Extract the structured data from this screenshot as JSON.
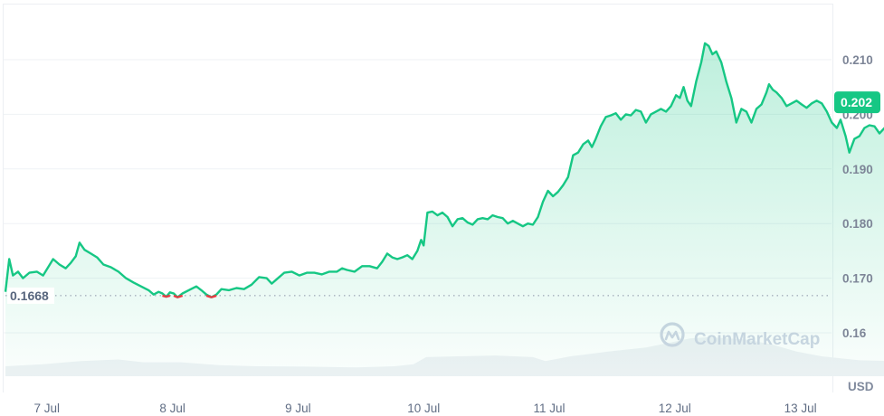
{
  "chart_data": {
    "type": "area",
    "title": "",
    "xlabel": "",
    "ylabel": "USD",
    "currency_unit": "USD",
    "ylim": [
      0.1545,
      0.2185
    ],
    "y_ticks": [
      {
        "label": "0.210",
        "value": 0.21
      },
      {
        "label": "0.200",
        "value": 0.2
      },
      {
        "label": "0.190",
        "value": 0.19
      },
      {
        "label": "0.180",
        "value": 0.18
      },
      {
        "label": "0.170",
        "value": 0.17
      },
      {
        "label": "0.16",
        "value": 0.16
      }
    ],
    "x_ticks": [
      {
        "label": "7 Jul",
        "x": 0.33
      },
      {
        "label": "8 Jul",
        "x": 1.33
      },
      {
        "label": "9 Jul",
        "x": 2.33
      },
      {
        "label": "10 Jul",
        "x": 3.33
      },
      {
        "label": "11 Jul",
        "x": 4.33
      },
      {
        "label": "12 Jul",
        "x": 5.33
      },
      {
        "label": "13 Jul",
        "x": 6.33
      }
    ],
    "x_range_days": [
      0,
      7.05
    ],
    "grid": true,
    "legend": "none",
    "current_price": {
      "label": "0.202",
      "value": 0.2022
    },
    "baseline": {
      "label": "0.1668",
      "value": 0.1668
    },
    "series": [
      {
        "name": "Price",
        "color_up": "#16c784",
        "color_down": "#ea3943",
        "points": [
          [
            0.0,
            0.1675
          ],
          [
            0.03,
            0.1735
          ],
          [
            0.06,
            0.1705
          ],
          [
            0.1,
            0.1712
          ],
          [
            0.14,
            0.17
          ],
          [
            0.19,
            0.171
          ],
          [
            0.25,
            0.1712
          ],
          [
            0.3,
            0.1705
          ],
          [
            0.34,
            0.172
          ],
          [
            0.38,
            0.1735
          ],
          [
            0.43,
            0.1725
          ],
          [
            0.48,
            0.1718
          ],
          [
            0.52,
            0.1728
          ],
          [
            0.56,
            0.174
          ],
          [
            0.59,
            0.1765
          ],
          [
            0.63,
            0.1752
          ],
          [
            0.68,
            0.1745
          ],
          [
            0.73,
            0.1738
          ],
          [
            0.78,
            0.1725
          ],
          [
            0.84,
            0.172
          ],
          [
            0.9,
            0.1712
          ],
          [
            0.96,
            0.17
          ],
          [
            1.02,
            0.1692
          ],
          [
            1.08,
            0.1685
          ],
          [
            1.14,
            0.1678
          ],
          [
            1.18,
            0.167
          ],
          [
            1.22,
            0.1675
          ],
          [
            1.25,
            0.1672
          ],
          [
            1.28,
            0.1666
          ],
          [
            1.31,
            0.1674
          ],
          [
            1.34,
            0.1672
          ],
          [
            1.37,
            0.1665
          ],
          [
            1.41,
            0.1672
          ],
          [
            1.46,
            0.1678
          ],
          [
            1.52,
            0.1685
          ],
          [
            1.56,
            0.1678
          ],
          [
            1.6,
            0.167
          ],
          [
            1.64,
            0.1665
          ],
          [
            1.68,
            0.167
          ],
          [
            1.72,
            0.168
          ],
          [
            1.78,
            0.1678
          ],
          [
            1.84,
            0.1682
          ],
          [
            1.9,
            0.168
          ],
          [
            1.96,
            0.1688
          ],
          [
            2.02,
            0.1702
          ],
          [
            2.08,
            0.17
          ],
          [
            2.12,
            0.169
          ],
          [
            2.16,
            0.1698
          ],
          [
            2.22,
            0.171
          ],
          [
            2.28,
            0.1712
          ],
          [
            2.34,
            0.1705
          ],
          [
            2.4,
            0.171
          ],
          [
            2.46,
            0.171
          ],
          [
            2.52,
            0.1707
          ],
          [
            2.58,
            0.1712
          ],
          [
            2.64,
            0.1712
          ],
          [
            2.68,
            0.1718
          ],
          [
            2.72,
            0.1715
          ],
          [
            2.78,
            0.1712
          ],
          [
            2.84,
            0.1722
          ],
          [
            2.9,
            0.1722
          ],
          [
            2.96,
            0.1718
          ],
          [
            3.0,
            0.173
          ],
          [
            3.04,
            0.1745
          ],
          [
            3.08,
            0.1738
          ],
          [
            3.12,
            0.1735
          ],
          [
            3.16,
            0.1738
          ],
          [
            3.2,
            0.1742
          ],
          [
            3.24,
            0.1735
          ],
          [
            3.28,
            0.175
          ],
          [
            3.31,
            0.177
          ],
          [
            3.33,
            0.176
          ],
          [
            3.36,
            0.182
          ],
          [
            3.4,
            0.1822
          ],
          [
            3.44,
            0.1815
          ],
          [
            3.48,
            0.182
          ],
          [
            3.52,
            0.1812
          ],
          [
            3.56,
            0.1795
          ],
          [
            3.6,
            0.1808
          ],
          [
            3.64,
            0.181
          ],
          [
            3.68,
            0.1802
          ],
          [
            3.72,
            0.1798
          ],
          [
            3.76,
            0.1808
          ],
          [
            3.8,
            0.181
          ],
          [
            3.84,
            0.1808
          ],
          [
            3.88,
            0.1815
          ],
          [
            3.92,
            0.1812
          ],
          [
            3.96,
            0.181
          ],
          [
            4.0,
            0.18
          ],
          [
            4.04,
            0.1805
          ],
          [
            4.08,
            0.18
          ],
          [
            4.12,
            0.1795
          ],
          [
            4.16,
            0.18
          ],
          [
            4.2,
            0.1798
          ],
          [
            4.24,
            0.1812
          ],
          [
            4.28,
            0.184
          ],
          [
            4.32,
            0.186
          ],
          [
            4.36,
            0.185
          ],
          [
            4.4,
            0.1858
          ],
          [
            4.44,
            0.187
          ],
          [
            4.48,
            0.1885
          ],
          [
            4.52,
            0.1925
          ],
          [
            4.56,
            0.193
          ],
          [
            4.6,
            0.1945
          ],
          [
            4.64,
            0.1952
          ],
          [
            4.67,
            0.194
          ],
          [
            4.7,
            0.1955
          ],
          [
            4.74,
            0.1978
          ],
          [
            4.78,
            0.1995
          ],
          [
            4.82,
            0.1998
          ],
          [
            4.86,
            0.2002
          ],
          [
            4.9,
            0.199
          ],
          [
            4.94,
            0.2
          ],
          [
            4.98,
            0.1998
          ],
          [
            5.02,
            0.2008
          ],
          [
            5.06,
            0.2005
          ],
          [
            5.1,
            0.1985
          ],
          [
            5.14,
            0.2
          ],
          [
            5.18,
            0.2005
          ],
          [
            5.22,
            0.201
          ],
          [
            5.26,
            0.2005
          ],
          [
            5.3,
            0.2015
          ],
          [
            5.34,
            0.2035
          ],
          [
            5.37,
            0.203
          ],
          [
            5.4,
            0.205
          ],
          [
            5.43,
            0.2025
          ],
          [
            5.46,
            0.2015
          ],
          [
            5.5,
            0.206
          ],
          [
            5.54,
            0.2095
          ],
          [
            5.57,
            0.213
          ],
          [
            5.6,
            0.2125
          ],
          [
            5.63,
            0.211
          ],
          [
            5.66,
            0.2115
          ],
          [
            5.7,
            0.2095
          ],
          [
            5.74,
            0.206
          ],
          [
            5.78,
            0.203
          ],
          [
            5.82,
            0.1985
          ],
          [
            5.86,
            0.201
          ],
          [
            5.9,
            0.2005
          ],
          [
            5.94,
            0.1985
          ],
          [
            5.98,
            0.201
          ],
          [
            6.02,
            0.2018
          ],
          [
            6.06,
            0.204
          ],
          [
            6.08,
            0.2055
          ],
          [
            6.11,
            0.2045
          ],
          [
            6.14,
            0.204
          ],
          [
            6.18,
            0.203
          ],
          [
            6.22,
            0.2015
          ],
          [
            6.26,
            0.202
          ],
          [
            6.3,
            0.2025
          ],
          [
            6.34,
            0.2018
          ],
          [
            6.38,
            0.2012
          ],
          [
            6.42,
            0.202
          ],
          [
            6.46,
            0.2025
          ],
          [
            6.5,
            0.202
          ],
          [
            6.54,
            0.2005
          ],
          [
            6.58,
            0.1985
          ],
          [
            6.62,
            0.1975
          ],
          [
            6.65,
            0.199
          ],
          [
            6.69,
            0.196
          ],
          [
            6.72,
            0.193
          ],
          [
            6.76,
            0.1955
          ],
          [
            6.8,
            0.196
          ],
          [
            6.84,
            0.1975
          ],
          [
            6.88,
            0.198
          ],
          [
            6.92,
            0.1978
          ],
          [
            6.96,
            0.1965
          ],
          [
            7.0,
            0.1975
          ],
          [
            7.04,
            0.1982
          ],
          [
            7.08,
            0.1985
          ],
          [
            7.12,
            0.1988
          ],
          [
            7.16,
            0.199
          ],
          [
            7.2,
            0.1993
          ],
          [
            7.24,
            0.1988
          ],
          [
            7.28,
            0.1998
          ],
          [
            7.32,
            0.1995
          ],
          [
            7.36,
            0.1985
          ],
          [
            7.4,
            0.1978
          ],
          [
            7.44,
            0.1988
          ],
          [
            7.48,
            0.1995
          ],
          [
            7.52,
            0.2005
          ],
          [
            7.55,
            0.2012
          ],
          [
            7.58,
            0.2022
          ]
        ]
      },
      {
        "name": "Volume",
        "color": "#eff2f5",
        "relative_heights": [
          [
            0.0,
            0.25
          ],
          [
            0.3,
            0.3
          ],
          [
            0.6,
            0.38
          ],
          [
            0.9,
            0.42
          ],
          [
            1.1,
            0.35
          ],
          [
            1.4,
            0.35
          ],
          [
            1.7,
            0.28
          ],
          [
            2.0,
            0.25
          ],
          [
            2.4,
            0.24
          ],
          [
            2.8,
            0.22
          ],
          [
            3.1,
            0.25
          ],
          [
            3.25,
            0.3
          ],
          [
            3.35,
            0.48
          ],
          [
            3.6,
            0.5
          ],
          [
            3.9,
            0.52
          ],
          [
            4.2,
            0.48
          ],
          [
            4.3,
            0.38
          ],
          [
            4.5,
            0.5
          ],
          [
            4.8,
            0.62
          ],
          [
            5.1,
            0.72
          ],
          [
            5.3,
            0.85
          ],
          [
            5.45,
            0.95
          ],
          [
            5.6,
            0.98
          ],
          [
            5.9,
            0.92
          ],
          [
            6.1,
            0.8
          ],
          [
            6.3,
            0.62
          ],
          [
            6.5,
            0.5
          ],
          [
            6.8,
            0.4
          ],
          [
            7.1,
            0.38
          ],
          [
            7.3,
            0.35
          ],
          [
            7.58,
            0.32
          ]
        ]
      }
    ]
  },
  "axis": {
    "y_labels": [
      "0.210",
      "0.200",
      "0.190",
      "0.180",
      "0.170",
      "0.16"
    ],
    "x_labels": [
      "7 Jul",
      "8 Jul",
      "9 Jul",
      "10 Jul",
      "11 Jul",
      "12 Jul",
      "13 Jul"
    ],
    "unit": "USD"
  },
  "price_badge": {
    "label": "0.202",
    "color": "#16c784"
  },
  "baseline_label": "0.1668",
  "watermark": {
    "text": "CoinMarketCap",
    "icon": "coinmarketcap-logo-icon"
  },
  "colors": {
    "line_up": "#16c784",
    "line_down": "#ea3943",
    "area_top": "#c8f1de",
    "grid": "#eff2f5",
    "axis_text": "#7d8597",
    "volume": "#eff2f5"
  }
}
